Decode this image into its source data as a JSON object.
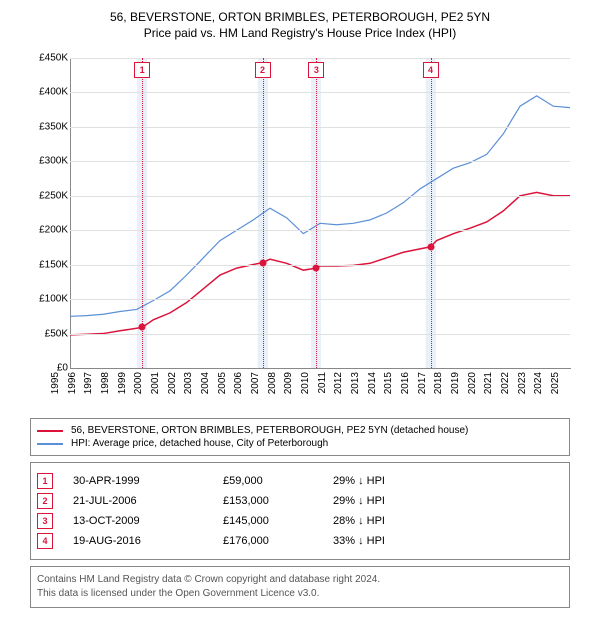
{
  "title": {
    "line1": "56, BEVERSTONE, ORTON BRIMBLES, PETERBOROUGH, PE2 5YN",
    "line2": "Price paid vs. HM Land Registry's House Price Index (HPI)"
  },
  "chart": {
    "type": "line",
    "x_range": [
      1995,
      2025
    ],
    "y_range": [
      0,
      450000
    ],
    "y_ticks": [
      0,
      50000,
      100000,
      150000,
      200000,
      250000,
      300000,
      350000,
      400000,
      450000
    ],
    "y_tick_labels": [
      "£0",
      "£50K",
      "£100K",
      "£150K",
      "£200K",
      "£250K",
      "£300K",
      "£350K",
      "£400K",
      "£450K"
    ],
    "x_ticks": [
      1995,
      1996,
      1997,
      1998,
      1999,
      2000,
      2001,
      2002,
      2003,
      2004,
      2005,
      2006,
      2007,
      2008,
      2009,
      2010,
      2011,
      2012,
      2013,
      2014,
      2015,
      2016,
      2017,
      2018,
      2019,
      2020,
      2021,
      2022,
      2023,
      2024,
      2025
    ],
    "background_color": "#ffffff",
    "grid_color": "#e0e0e0",
    "axis_color": "#888888",
    "marker_band_color": "#eaf0f8",
    "marker_line_color": "#dc143c",
    "series": [
      {
        "name": "property",
        "color": "#dc143c",
        "stroke_width": 1.5,
        "label": "56, BEVERSTONE, ORTON BRIMBLES, PETERBOROUGH, PE2 5YN (detached house)",
        "points": [
          [
            1995,
            48000
          ],
          [
            1996,
            49000
          ],
          [
            1997,
            50000
          ],
          [
            1998,
            54000
          ],
          [
            1999.33,
            59000
          ],
          [
            2000,
            70000
          ],
          [
            2001,
            80000
          ],
          [
            2002,
            95000
          ],
          [
            2003,
            115000
          ],
          [
            2004,
            135000
          ],
          [
            2005,
            145000
          ],
          [
            2006.55,
            153000
          ],
          [
            2007,
            158000
          ],
          [
            2008,
            152000
          ],
          [
            2009,
            142000
          ],
          [
            2009.78,
            145000
          ],
          [
            2010,
            148000
          ],
          [
            2011,
            148000
          ],
          [
            2012,
            149000
          ],
          [
            2013,
            152000
          ],
          [
            2014,
            160000
          ],
          [
            2015,
            168000
          ],
          [
            2016.63,
            176000
          ],
          [
            2017,
            185000
          ],
          [
            2018,
            195000
          ],
          [
            2019,
            203000
          ],
          [
            2020,
            212000
          ],
          [
            2021,
            228000
          ],
          [
            2022,
            250000
          ],
          [
            2023,
            255000
          ],
          [
            2024,
            250000
          ],
          [
            2025,
            250000
          ]
        ]
      },
      {
        "name": "hpi",
        "color": "#5b8fd6",
        "stroke_width": 1.2,
        "label": "HPI: Average price, detached house, City of Peterborough",
        "points": [
          [
            1995,
            75000
          ],
          [
            1996,
            76000
          ],
          [
            1997,
            78000
          ],
          [
            1998,
            82000
          ],
          [
            1999,
            85000
          ],
          [
            2000,
            98000
          ],
          [
            2001,
            112000
          ],
          [
            2002,
            135000
          ],
          [
            2003,
            160000
          ],
          [
            2004,
            185000
          ],
          [
            2005,
            200000
          ],
          [
            2006,
            215000
          ],
          [
            2007,
            232000
          ],
          [
            2008,
            218000
          ],
          [
            2009,
            195000
          ],
          [
            2010,
            210000
          ],
          [
            2011,
            208000
          ],
          [
            2012,
            210000
          ],
          [
            2013,
            215000
          ],
          [
            2014,
            225000
          ],
          [
            2015,
            240000
          ],
          [
            2016,
            260000
          ],
          [
            2017,
            275000
          ],
          [
            2018,
            290000
          ],
          [
            2019,
            298000
          ],
          [
            2020,
            310000
          ],
          [
            2021,
            340000
          ],
          [
            2022,
            380000
          ],
          [
            2023,
            395000
          ],
          [
            2024,
            380000
          ],
          [
            2025,
            378000
          ]
        ]
      }
    ],
    "markers": [
      {
        "n": "1",
        "x": 1999.33,
        "y": 59000
      },
      {
        "n": "2",
        "x": 2006.55,
        "y": 153000
      },
      {
        "n": "3",
        "x": 2009.78,
        "y": 145000
      },
      {
        "n": "4",
        "x": 2016.63,
        "y": 176000
      }
    ]
  },
  "sales": [
    {
      "n": "1",
      "date": "30-APR-1999",
      "price": "£59,000",
      "delta": "29% ↓ HPI"
    },
    {
      "n": "2",
      "date": "21-JUL-2006",
      "price": "£153,000",
      "delta": "29% ↓ HPI"
    },
    {
      "n": "3",
      "date": "13-OCT-2009",
      "price": "£145,000",
      "delta": "28% ↓ HPI"
    },
    {
      "n": "4",
      "date": "19-AUG-2016",
      "price": "£176,000",
      "delta": "33% ↓ HPI"
    }
  ],
  "footer": {
    "line1": "Contains HM Land Registry data © Crown copyright and database right 2024.",
    "line2": "This data is licensed under the Open Government Licence v3.0."
  }
}
